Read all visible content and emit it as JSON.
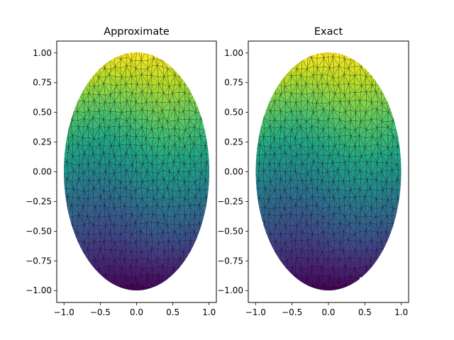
{
  "chart_data": [
    {
      "type": "heatmap",
      "subtype": "triangular-mesh",
      "title": "Approximate",
      "xlabel": "",
      "ylabel": "",
      "xlim": [
        -1.1,
        1.1
      ],
      "ylim": [
        -1.1,
        1.1
      ],
      "xticks": [
        -1.0,
        -0.5,
        0.0,
        0.5,
        1.0
      ],
      "xtick_labels": [
        "−1.0",
        "−0.5",
        "0.0",
        "0.5",
        "1.0"
      ],
      "yticks": [
        1.0,
        0.75,
        0.5,
        0.25,
        0.0,
        -0.25,
        -0.5,
        -0.75,
        -1.0
      ],
      "ytick_labels": [
        "1.00",
        "0.75",
        "0.50",
        "0.25",
        "0.00",
        "−0.25",
        "−0.50",
        "−0.75",
        "−1.00"
      ],
      "domain": {
        "shape": "ellipse",
        "center": [
          0,
          0
        ],
        "semi_axis_x": 1.0,
        "semi_axis_y": 1.0
      },
      "colormap": "viridis",
      "field_min": -1,
      "field_max": 1,
      "mesh_edge_color": "#000000",
      "grid": false
    },
    {
      "type": "heatmap",
      "subtype": "triangular-mesh",
      "title": "Exact",
      "xlabel": "",
      "ylabel": "",
      "xlim": [
        -1.1,
        1.1
      ],
      "ylim": [
        -1.1,
        1.1
      ],
      "xticks": [
        -1.0,
        -0.5,
        0.0,
        0.5,
        1.0
      ],
      "xtick_labels": [
        "−1.0",
        "−0.5",
        "0.0",
        "0.5",
        "1.0"
      ],
      "yticks": [
        1.0,
        0.75,
        0.5,
        0.25,
        0.0,
        -0.25,
        -0.5,
        -0.75,
        -1.0
      ],
      "ytick_labels": [
        "1.00",
        "0.75",
        "0.50",
        "0.25",
        "0.00",
        "−0.25",
        "−0.50",
        "−0.75",
        "−1.00"
      ],
      "domain": {
        "shape": "ellipse",
        "center": [
          0,
          0
        ],
        "semi_axis_x": 1.0,
        "semi_axis_y": 1.0
      },
      "colormap": "viridis",
      "field_min": -1,
      "field_max": 1,
      "mesh_edge_color": "#000000",
      "grid": false
    }
  ],
  "colors": {
    "viridis_low": "#440154",
    "viridis_mid": "#21918c",
    "viridis_high": "#fde725"
  }
}
